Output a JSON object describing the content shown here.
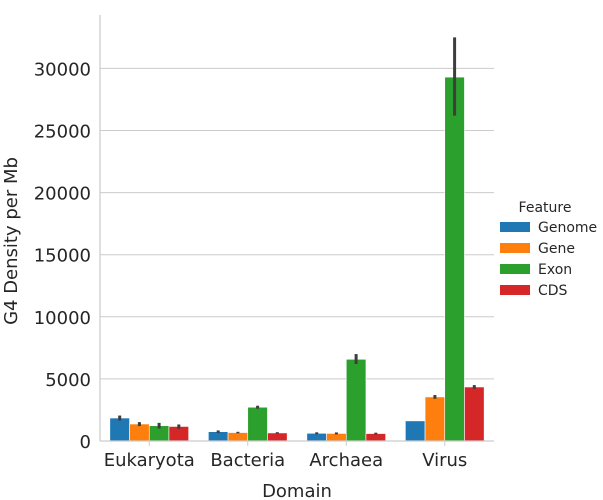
{
  "chart_data": {
    "type": "bar",
    "xlabel": "Domain",
    "ylabel": "G4 Density per Mb",
    "categories": [
      "Eukaryota",
      "Bacteria",
      "Archaea",
      "Virus"
    ],
    "ylim": [
      0,
      34300
    ],
    "yticks": [
      0,
      5000,
      10000,
      15000,
      20000,
      25000,
      30000
    ],
    "grid": "horizontal",
    "legend": {
      "title": "Feature",
      "placement": "right"
    },
    "series": [
      {
        "name": "Genome",
        "color": "#1f77b4",
        "values": [
          1850,
          750,
          620,
          1620
        ],
        "err_low": [
          1650,
          650,
          540,
          1620
        ],
        "err_high": [
          2050,
          850,
          700,
          1620
        ]
      },
      {
        "name": "Gene",
        "color": "#ff7f0e",
        "values": [
          1370,
          680,
          610,
          3550
        ],
        "err_low": [
          1200,
          620,
          530,
          3400
        ],
        "err_high": [
          1520,
          740,
          690,
          3700
        ]
      },
      {
        "name": "Exon",
        "color": "#2ca02c",
        "values": [
          1230,
          2720,
          6580,
          29300
        ],
        "err_low": [
          1000,
          2600,
          6200,
          26200
        ],
        "err_high": [
          1460,
          2840,
          7000,
          32500
        ]
      },
      {
        "name": "CDS",
        "color": "#d62728",
        "values": [
          1170,
          650,
          600,
          4350
        ],
        "err_low": [
          980,
          590,
          530,
          4200
        ],
        "err_high": [
          1330,
          710,
          670,
          4500
        ]
      }
    ]
  }
}
